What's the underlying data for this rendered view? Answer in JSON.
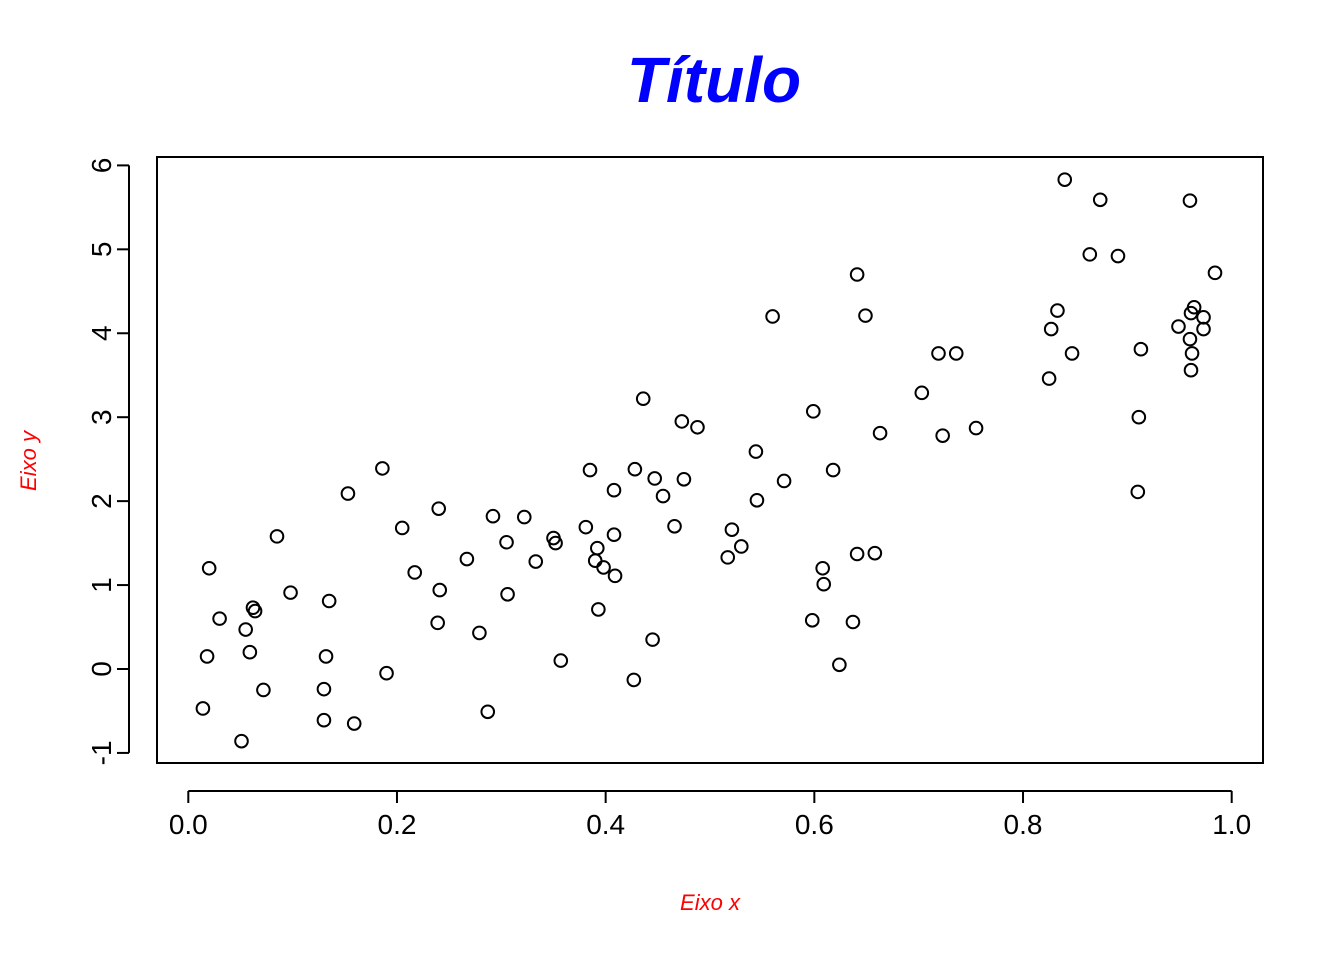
{
  "chart_data": {
    "type": "scatter",
    "title": "Título",
    "xlabel": "Eixo x",
    "ylabel": "Eixo y",
    "xlim": [
      -0.03,
      1.03
    ],
    "ylim": [
      -1.12,
      6.1
    ],
    "x_ticks": [
      0.0,
      0.2,
      0.4,
      0.6,
      0.8,
      1.0
    ],
    "x_tick_labels": [
      "0.0",
      "0.2",
      "0.4",
      "0.6",
      "0.8",
      "1.0"
    ],
    "y_ticks": [
      -1,
      0,
      1,
      2,
      3,
      4,
      5,
      6
    ],
    "y_tick_labels": [
      "-1",
      "0",
      "1",
      "2",
      "3",
      "4",
      "5",
      "6"
    ],
    "grid": false,
    "legend": "none",
    "marker": "open-circle",
    "colors": {
      "title": "#0000ff",
      "axis_labels": "#ff0000",
      "points": "#000000",
      "frame": "#000000"
    },
    "points": [
      {
        "x": 0.014,
        "y": -0.47
      },
      {
        "x": 0.018,
        "y": 0.15
      },
      {
        "x": 0.02,
        "y": 1.2
      },
      {
        "x": 0.03,
        "y": 0.6
      },
      {
        "x": 0.051,
        "y": -0.86
      },
      {
        "x": 0.055,
        "y": 0.47
      },
      {
        "x": 0.059,
        "y": 0.2
      },
      {
        "x": 0.062,
        "y": 0.73
      },
      {
        "x": 0.064,
        "y": 0.69
      },
      {
        "x": 0.072,
        "y": -0.25
      },
      {
        "x": 0.085,
        "y": 1.58
      },
      {
        "x": 0.098,
        "y": 0.91
      },
      {
        "x": 0.13,
        "y": -0.61
      },
      {
        "x": 0.13,
        "y": -0.24
      },
      {
        "x": 0.132,
        "y": 0.15
      },
      {
        "x": 0.135,
        "y": 0.81
      },
      {
        "x": 0.153,
        "y": 2.09
      },
      {
        "x": 0.159,
        "y": -0.65
      },
      {
        "x": 0.186,
        "y": 2.39
      },
      {
        "x": 0.19,
        "y": -0.05
      },
      {
        "x": 0.205,
        "y": 1.68
      },
      {
        "x": 0.217,
        "y": 1.15
      },
      {
        "x": 0.239,
        "y": 0.55
      },
      {
        "x": 0.24,
        "y": 1.91
      },
      {
        "x": 0.241,
        "y": 0.94
      },
      {
        "x": 0.267,
        "y": 1.31
      },
      {
        "x": 0.279,
        "y": 0.43
      },
      {
        "x": 0.287,
        "y": -0.51
      },
      {
        "x": 0.292,
        "y": 1.82
      },
      {
        "x": 0.305,
        "y": 1.51
      },
      {
        "x": 0.306,
        "y": 0.89
      },
      {
        "x": 0.322,
        "y": 1.81
      },
      {
        "x": 0.333,
        "y": 1.28
      },
      {
        "x": 0.35,
        "y": 1.56
      },
      {
        "x": 0.352,
        "y": 1.5
      },
      {
        "x": 0.357,
        "y": 0.1
      },
      {
        "x": 0.381,
        "y": 1.69
      },
      {
        "x": 0.385,
        "y": 2.37
      },
      {
        "x": 0.39,
        "y": 1.29
      },
      {
        "x": 0.392,
        "y": 1.44
      },
      {
        "x": 0.393,
        "y": 0.71
      },
      {
        "x": 0.398,
        "y": 1.21
      },
      {
        "x": 0.408,
        "y": 2.13
      },
      {
        "x": 0.408,
        "y": 1.6
      },
      {
        "x": 0.409,
        "y": 1.11
      },
      {
        "x": 0.427,
        "y": -0.13
      },
      {
        "x": 0.428,
        "y": 2.38
      },
      {
        "x": 0.436,
        "y": 3.22
      },
      {
        "x": 0.445,
        "y": 0.35
      },
      {
        "x": 0.447,
        "y": 2.27
      },
      {
        "x": 0.455,
        "y": 2.06
      },
      {
        "x": 0.466,
        "y": 1.7
      },
      {
        "x": 0.473,
        "y": 2.95
      },
      {
        "x": 0.475,
        "y": 2.26
      },
      {
        "x": 0.488,
        "y": 2.88
      },
      {
        "x": 0.517,
        "y": 1.33
      },
      {
        "x": 0.521,
        "y": 1.66
      },
      {
        "x": 0.53,
        "y": 1.46
      },
      {
        "x": 0.544,
        "y": 2.59
      },
      {
        "x": 0.545,
        "y": 2.01
      },
      {
        "x": 0.56,
        "y": 4.2
      },
      {
        "x": 0.571,
        "y": 2.24
      },
      {
        "x": 0.598,
        "y": 0.58
      },
      {
        "x": 0.599,
        "y": 3.07
      },
      {
        "x": 0.608,
        "y": 1.2
      },
      {
        "x": 0.609,
        "y": 1.01
      },
      {
        "x": 0.618,
        "y": 2.37
      },
      {
        "x": 0.624,
        "y": 0.05
      },
      {
        "x": 0.637,
        "y": 0.56
      },
      {
        "x": 0.641,
        "y": 1.37
      },
      {
        "x": 0.641,
        "y": 4.7
      },
      {
        "x": 0.649,
        "y": 4.21
      },
      {
        "x": 0.658,
        "y": 1.38
      },
      {
        "x": 0.663,
        "y": 2.81
      },
      {
        "x": 0.703,
        "y": 3.29
      },
      {
        "x": 0.719,
        "y": 3.76
      },
      {
        "x": 0.723,
        "y": 2.78
      },
      {
        "x": 0.736,
        "y": 3.76
      },
      {
        "x": 0.755,
        "y": 2.87
      },
      {
        "x": 0.825,
        "y": 3.46
      },
      {
        "x": 0.827,
        "y": 4.05
      },
      {
        "x": 0.833,
        "y": 4.27
      },
      {
        "x": 0.84,
        "y": 5.83
      },
      {
        "x": 0.847,
        "y": 3.76
      },
      {
        "x": 0.864,
        "y": 4.94
      },
      {
        "x": 0.874,
        "y": 5.59
      },
      {
        "x": 0.891,
        "y": 4.92
      },
      {
        "x": 0.91,
        "y": 2.11
      },
      {
        "x": 0.911,
        "y": 3.0
      },
      {
        "x": 0.913,
        "y": 3.81
      },
      {
        "x": 0.949,
        "y": 4.08
      },
      {
        "x": 0.96,
        "y": 5.58
      },
      {
        "x": 0.96,
        "y": 3.93
      },
      {
        "x": 0.961,
        "y": 3.56
      },
      {
        "x": 0.961,
        "y": 4.24
      },
      {
        "x": 0.962,
        "y": 3.76
      },
      {
        "x": 0.964,
        "y": 4.31
      },
      {
        "x": 0.973,
        "y": 4.19
      },
      {
        "x": 0.973,
        "y": 4.05
      },
      {
        "x": 0.984,
        "y": 4.72
      }
    ]
  }
}
